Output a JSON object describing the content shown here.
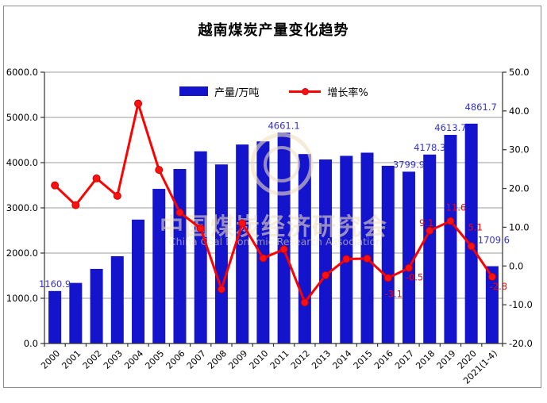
{
  "title": "越南煤炭产量变化趋势",
  "watermark": {
    "line1": "中国煤炭经济研究会",
    "line2": "China Coal Economic Research Association"
  },
  "legend": {
    "bar_label": "产量/万吨",
    "line_label": "增长率%"
  },
  "colors": {
    "bar": "#1414cc",
    "bar_label": "#3333cc",
    "line": "#ff0000",
    "marker_fill": "#ff1010",
    "marker_edge": "#cc0000",
    "gridline": "#9b9b9b",
    "axis": "#333333",
    "frame": "#8e8e8e",
    "watermark": "rgba(238,222,188,0.6)"
  },
  "chart_data": {
    "type": "bar",
    "subtype": "bar+line combo",
    "title": "越南煤炭产量变化趋势",
    "categories": [
      "2000",
      "2001",
      "2002",
      "2003",
      "2004",
      "2005",
      "2006",
      "2007",
      "2008",
      "2009",
      "2010",
      "2011",
      "2012",
      "2013",
      "2014",
      "2015",
      "2016",
      "2017",
      "2018",
      "2019",
      "2020",
      "2021(1-4)"
    ],
    "series": [
      {
        "name": "产量/万吨",
        "type": "bar",
        "axis": "left",
        "values": [
          1160.9,
          1340,
          1650,
          1930,
          2740,
          3420,
          3860,
          4250,
          3960,
          4400,
          4470,
          4661.1,
          4190,
          4070,
          4150,
          4220,
          3930,
          3799.9,
          4178.3,
          4613.7,
          4861.7,
          1709.6
        ]
      },
      {
        "name": "增长率%",
        "type": "line",
        "axis": "right",
        "values": [
          20.8,
          15.7,
          22.6,
          18.1,
          41.9,
          24.8,
          13.8,
          9.7,
          -6.0,
          11.0,
          2.0,
          4.3,
          -9.4,
          -2.4,
          1.8,
          1.9,
          -3.1,
          -0.5,
          9.1,
          11.6,
          5.1,
          -2.8
        ]
      }
    ],
    "bar_labels": {
      "0": "1160.9",
      "11": "4661.1",
      "17": "3799.9",
      "18": "4178.3",
      "19": "4613.7",
      "20": "4861.7",
      "21": "1709.6"
    },
    "line_labels": {
      "16": "-3.1",
      "17": "-0.5",
      "18": "9.1",
      "19": "11.6",
      "20": "5.1",
      "21": "-2.8"
    },
    "left_axis": {
      "min": 0,
      "max": 6000,
      "step": 1000,
      "tick_labels": [
        "6000.0",
        "5000.0",
        "4000.0",
        "3000.0",
        "2000.0",
        "1000.0",
        "0.0"
      ]
    },
    "right_axis": {
      "min": -20,
      "max": 50,
      "step": 10,
      "tick_labels": [
        "50.0",
        "40.0",
        "30.0",
        "20.0",
        "10.0",
        "0.0",
        "-10.0",
        "-20.0"
      ]
    },
    "grid": true,
    "legend_position": "top-center"
  }
}
